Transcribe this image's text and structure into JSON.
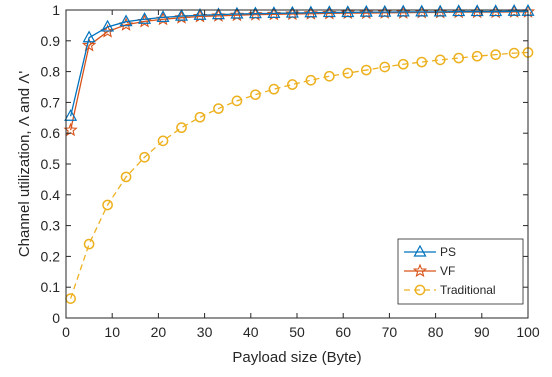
{
  "chart_data": {
    "type": "line",
    "xlabel": "Payload size (Byte)",
    "ylabel": "Channel utilization, Λ and Λ'",
    "xlim": [
      0,
      100
    ],
    "ylim": [
      0,
      1
    ],
    "xticks": [
      0,
      10,
      20,
      30,
      40,
      50,
      60,
      70,
      80,
      90,
      100
    ],
    "yticks": [
      0,
      0.1,
      0.2,
      0.3,
      0.4,
      0.5,
      0.6,
      0.7,
      0.8,
      0.9,
      1
    ],
    "xtick_labels": [
      "0",
      "10",
      "20",
      "30",
      "40",
      "50",
      "60",
      "70",
      "80",
      "90",
      "100"
    ],
    "ytick_labels": [
      "0",
      "0.1",
      "0.2",
      "0.3",
      "0.4",
      "0.5",
      "0.6",
      "0.7",
      "0.8",
      "0.9",
      "1"
    ],
    "grid": false,
    "legend_position": "bottom-right",
    "x": [
      1,
      5,
      9,
      13,
      17,
      21,
      25,
      29,
      33,
      37,
      41,
      45,
      49,
      53,
      57,
      61,
      65,
      69,
      73,
      77,
      81,
      85,
      89,
      93,
      97,
      100
    ],
    "series": [
      {
        "name": "PS",
        "color": "#0072BD",
        "marker": "triangle",
        "line": "solid",
        "values": [
          0.655,
          0.91,
          0.945,
          0.962,
          0.97,
          0.976,
          0.98,
          0.983,
          0.985,
          0.987,
          0.988,
          0.989,
          0.99,
          0.991,
          0.992,
          0.992,
          0.993,
          0.993,
          0.994,
          0.994,
          0.994,
          0.995,
          0.995,
          0.995,
          0.996,
          0.996
        ]
      },
      {
        "name": "VF",
        "color": "#D95319",
        "marker": "star",
        "line": "solid",
        "values": [
          0.61,
          0.885,
          0.93,
          0.952,
          0.963,
          0.97,
          0.975,
          0.979,
          0.981,
          0.983,
          0.985,
          0.986,
          0.987,
          0.988,
          0.989,
          0.99,
          0.99,
          0.991,
          0.991,
          0.992,
          0.992,
          0.993,
          0.993,
          0.993,
          0.994,
          0.994
        ]
      },
      {
        "name": "Traditional",
        "color": "#EDB120",
        "marker": "circle",
        "line": "dashed",
        "values": [
          0.063,
          0.24,
          0.367,
          0.458,
          0.522,
          0.575,
          0.618,
          0.652,
          0.68,
          0.705,
          0.725,
          0.743,
          0.758,
          0.772,
          0.785,
          0.795,
          0.805,
          0.815,
          0.824,
          0.831,
          0.838,
          0.844,
          0.85,
          0.855,
          0.86,
          0.862
        ]
      }
    ]
  }
}
